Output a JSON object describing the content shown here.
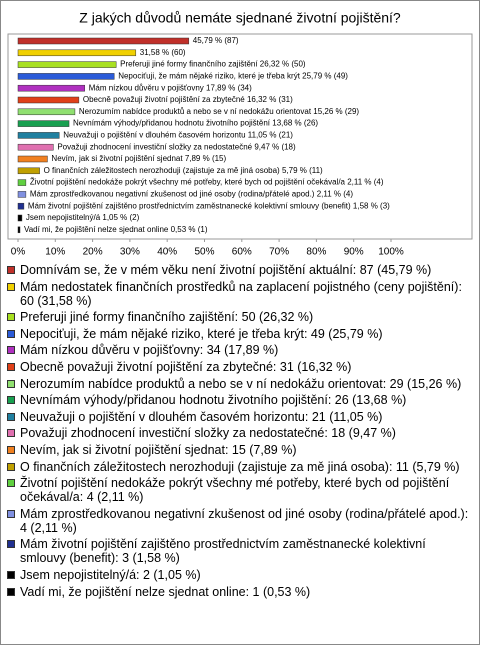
{
  "chart_data": {
    "type": "bar",
    "orientation": "horizontal",
    "title": "Z jakých důvodů nemáte sjednané životní pojištění?",
    "categories": [
      "Domnívám se, že v mém věku není životní pojištění aktuální: 87 (45,79 %)",
      "Mám nedostatek finančních prostředků na zaplacení pojistného (ceny pojištění): 60 (31,58 %)",
      "Preferuji jiné formy finančního zajištění: 50 (26,32 %)",
      "Nepociťuji, že mám nějaké riziko, které je třeba krýt: 49 (25,79 %)",
      "Mám nízkou důvěru v pojišťovny: 34 (17,89 %)",
      "Obecně považuji životní pojištění za zbytečné: 31 (16,32 %)",
      "Nerozumím nabídce produktů a nebo se v ní nedokážu orientovat: 29 (15,26 %)",
      "Nevnímám výhody/přidanou hodnotu životního pojištění: 26 (13,68 %)",
      "Neuvažuji o pojištění v dlouhém časovém horizontu: 21 (11,05 %)",
      "Považuji zhodnocení investiční složky za nedostatečné: 18 (9,47 %)",
      "Nevím, jak si životní pojištění sjednat: 15 (7,89 %)",
      "O finančních záležitostech nerozhoduji (zajistuje za mě jiná osoba): 11 (5,79 %)",
      "Životní pojištění nedokáže pokrýt všechny mé potřeby, které bych od pojištění očekával/a: 4 (2,11 %)",
      "Mám zprostředkovanou negativní zkušenost od jiné osoby (rodina/přátelé apod.): 4 (2,11 %)",
      "Mám životní pojištění zajištěno prostřednictvím zaměstnanecké kolektivní smlouvy (benefit): 3 (1,58 %)",
      "Jsem nepojistitelný/á: 2 (1,05 %)",
      "Vadí mi, že pojištění nelze sjednat online: 1 (0,53 %)"
    ],
    "values": [
      45.79,
      31.58,
      26.32,
      25.79,
      17.89,
      16.32,
      15.26,
      13.68,
      11.05,
      9.47,
      7.89,
      5.79,
      2.11,
      2.11,
      1.58,
      1.05,
      0.53
    ],
    "value_labels": [
      "45,79 % (87)",
      "31,58 % (60)",
      "Preferuji jiné formy finančního zajištění 26,32 % (50)",
      "Nepociťuji, že mám nějaké riziko, které je třeba krýt 25,79 % (49)",
      "Mám nízkou důvěru v pojišťovny 17,89 % (34)",
      "Obecně považuji životní pojištění za zbytečné 16,32 % (31)",
      "Nerozumím nabídce produktů a nebo se v ní nedokážu orientovat 15,26 % (29)",
      "Nevnímám výhody/přidanou hodnotu životního pojištění 13,68 % (26)",
      "Neuvažuji o pojištění v dlouhém časovém horizontu 11,05 % (21)",
      "Považuji zhodnocení investiční složky za nedostatečné 9,47 % (18)",
      "Nevím, jak si životní pojištění sjednat 7,89 % (15)",
      "O finančních záležitostech nerozhoduji (zajistuje za mě jiná osoba) 5,79 % (11)",
      "Životní pojištění nedokáže pokrýt všechny mé potřeby, které bych od pojištění očekával/a 2,11 % (4)",
      "Mám zprostředkovanou negativní zkušenost od jiné osoby (rodina/přátelé apod.) 2,11 % (4)",
      "Mám životní pojištění zajištěno prostřednictvím zaměstnanecké kolektivní smlouvy (benefit) 1,58 % (3)",
      "Jsem nepojistitelný/á 1,05 % (2)",
      "Vadí mi, že pojištění nelze sjednat online 0,53 % (1)"
    ],
    "colors": [
      "#c0302a",
      "#f0d000",
      "#a8e020",
      "#2b5bd8",
      "#b030c0",
      "#e04018",
      "#90e070",
      "#18a050",
      "#2080a0",
      "#e070b0",
      "#f08020",
      "#c0a000",
      "#60d040",
      "#8090e0",
      "#203090",
      "#000000",
      "#000000"
    ],
    "xlim": [
      0,
      100
    ],
    "xticks": [
      {
        "value": 0,
        "label": "0%"
      },
      {
        "value": 10,
        "label": "10%"
      },
      {
        "value": 20,
        "label": "20%"
      },
      {
        "value": 30,
        "label": "30%"
      },
      {
        "value": 40,
        "label": "40%"
      },
      {
        "value": 50,
        "label": "50%"
      },
      {
        "value": 60,
        "label": "60%"
      },
      {
        "value": 70,
        "label": "70%"
      },
      {
        "value": 80,
        "label": "80%"
      },
      {
        "value": 90,
        "label": "90%"
      },
      {
        "value": 100,
        "label": "100%"
      }
    ]
  }
}
